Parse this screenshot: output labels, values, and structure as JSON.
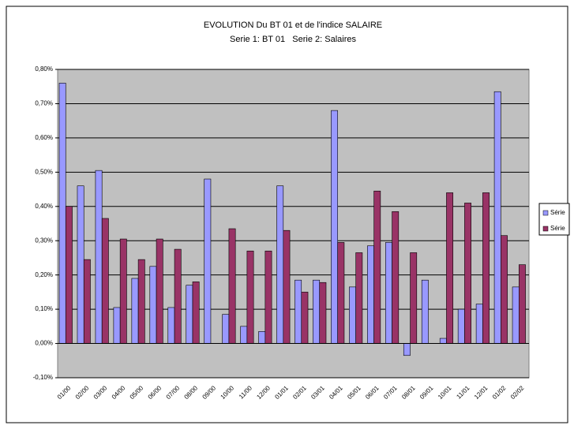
{
  "chart_data": {
    "type": "bar",
    "title": "EVOLUTION Du BT 01 et de l'indice SALAIRE",
    "subtitle": "Serie 1: BT 01   Serie 2: Salaires",
    "categories": [
      "01/00",
      "02/00",
      "03/00",
      "04/00",
      "05/00",
      "06/00",
      "07/00",
      "08/00",
      "09/00",
      "10/00",
      "11/00",
      "12/00",
      "01/01",
      "02/01",
      "03/01",
      "04/01",
      "05/01",
      "06/01",
      "07/01",
      "08/01",
      "09/01",
      "10/01",
      "11/01",
      "12/01",
      "01/02",
      "02/02"
    ],
    "series": [
      {
        "name": "Série",
        "color": "#9999ff",
        "values": [
          0.76,
          0.46,
          0.505,
          0.105,
          0.19,
          0.225,
          0.105,
          0.17,
          0.48,
          0.085,
          0.05,
          0.035,
          0.46,
          0.185,
          0.185,
          0.68,
          0.165,
          0.285,
          0.295,
          -0.035,
          0.185,
          0.015,
          0.1,
          0.115,
          0.735,
          0.165
        ]
      },
      {
        "name": "Série",
        "color": "#993366",
        "values": [
          0.4,
          0.245,
          0.365,
          0.305,
          0.245,
          0.305,
          0.275,
          0.18,
          null,
          0.335,
          0.27,
          0.27,
          0.33,
          0.15,
          0.178,
          0.295,
          0.265,
          0.445,
          0.385,
          0.265,
          null,
          0.44,
          0.41,
          0.44,
          0.315,
          0.23
        ]
      }
    ],
    "ylim": [
      -0.1,
      0.8
    ],
    "yticks": [
      {
        "value": -0.1,
        "label": "-0,10%"
      },
      {
        "value": 0,
        "label": "0,00%"
      },
      {
        "value": 0.1,
        "label": "0,10%"
      },
      {
        "value": 0.2,
        "label": "0,20%"
      },
      {
        "value": 0.3,
        "label": "0,30%"
      },
      {
        "value": 0.4,
        "label": "0,40%"
      },
      {
        "value": 0.5,
        "label": "0,50%"
      },
      {
        "value": 0.6,
        "label": "0,60%"
      },
      {
        "value": 0.7,
        "label": "0,70%"
      },
      {
        "value": 0.8,
        "label": "0,80%"
      }
    ],
    "grid": true,
    "legend": "right"
  }
}
